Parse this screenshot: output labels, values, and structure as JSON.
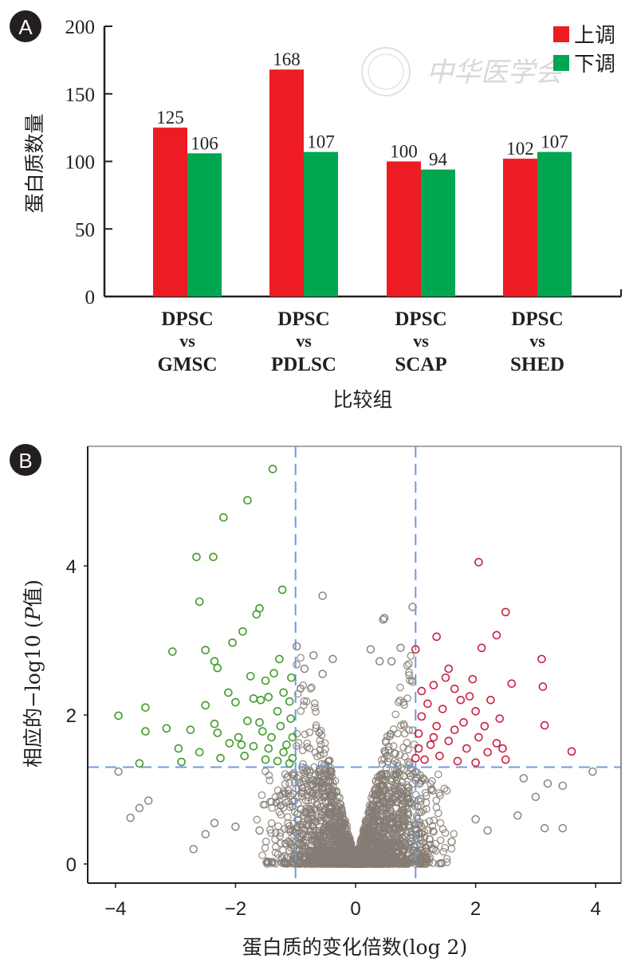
{
  "colors": {
    "up": "#ed1c24",
    "down": "#00a650",
    "scatter_up": "#c8203f",
    "scatter_down": "#3f9a2a",
    "scatter_ns": "#857c74",
    "threshold": "#6f9be0",
    "axis": "#231f20"
  },
  "watermark": "中华医学会",
  "chart_data": [
    {
      "panel": "A",
      "type": "bar",
      "title": "",
      "xlabel": "比较组",
      "ylabel": "蛋白质数量",
      "ylim": [
        0,
        200
      ],
      "yticks": [
        0,
        50,
        100,
        150,
        200
      ],
      "categories": [
        {
          "line1": "DPSC",
          "line2": "vs",
          "line3": "GMSC"
        },
        {
          "line1": "DPSC",
          "line2": "vs",
          "line3": "PDLSC"
        },
        {
          "line1": "DPSC",
          "line2": "vs",
          "line3": "SCAP"
        },
        {
          "line1": "DPSC",
          "line2": "vs",
          "line3": "SHED"
        }
      ],
      "series": [
        {
          "name": "上调",
          "color": "#ed1c24",
          "values": [
            125,
            168,
            100,
            102
          ]
        },
        {
          "name": "下调",
          "color": "#00a650",
          "values": [
            106,
            107,
            94,
            107
          ]
        }
      ],
      "legend": "top-right",
      "grid": false
    },
    {
      "panel": "B",
      "type": "scatter",
      "subtype": "volcano",
      "title": "",
      "xlabel": "蛋白质的变化倍数(log 2)",
      "ylabel_prefix": "相应的−log10 (",
      "ylabel_italic": "P",
      "ylabel_suffix": "值)",
      "xlim": [
        -4.4,
        4.4
      ],
      "ylim": [
        -0.25,
        5.6
      ],
      "xticks": [
        -4,
        -2,
        0,
        2,
        4
      ],
      "xtick_labels": [
        "−4",
        "−2",
        "0",
        "2",
        "4"
      ],
      "yticks": [
        0,
        2,
        4
      ],
      "thresholds": {
        "log2fc": [
          -1,
          1
        ],
        "neg_log10_p": 1.3
      },
      "grid": false,
      "series": [
        {
          "name": "down-regulated",
          "color": "#3f9a2a",
          "points": [
            [
              -1.38,
              5.3
            ],
            [
              -1.8,
              4.88
            ],
            [
              -2.2,
              4.65
            ],
            [
              -2.65,
              4.12
            ],
            [
              -2.37,
              4.12
            ],
            [
              -1.22,
              3.68
            ],
            [
              -2.6,
              3.52
            ],
            [
              -1.6,
              3.43
            ],
            [
              -1.65,
              3.35
            ],
            [
              -1.88,
              3.12
            ],
            [
              -3.05,
              2.85
            ],
            [
              -2.5,
              2.87
            ],
            [
              -1.27,
              2.75
            ],
            [
              -2.35,
              2.72
            ],
            [
              -2.3,
              2.63
            ],
            [
              -2.05,
              2.97
            ],
            [
              -1.75,
              2.52
            ],
            [
              -1.5,
              2.46
            ],
            [
              -1.36,
              2.56
            ],
            [
              -1.07,
              2.5
            ],
            [
              -2.12,
              2.3
            ],
            [
              -1.2,
              2.3
            ],
            [
              -1.7,
              2.22
            ],
            [
              -1.45,
              2.24
            ],
            [
              -3.95,
              1.99
            ],
            [
              -3.5,
              2.1
            ],
            [
              -2.5,
              2.13
            ],
            [
              -2.0,
              2.17
            ],
            [
              -1.58,
              2.2
            ],
            [
              -1.1,
              2.18
            ],
            [
              -3.15,
              1.82
            ],
            [
              -3.5,
              1.78
            ],
            [
              -2.75,
              1.8
            ],
            [
              -2.35,
              1.88
            ],
            [
              -1.8,
              1.92
            ],
            [
              -1.6,
              1.9
            ],
            [
              -1.25,
              1.85
            ],
            [
              -1.08,
              1.95
            ],
            [
              -2.95,
              1.55
            ],
            [
              -2.6,
              1.5
            ],
            [
              -2.1,
              1.62
            ],
            [
              -1.9,
              1.6
            ],
            [
              -1.7,
              1.58
            ],
            [
              -1.45,
              1.55
            ],
            [
              -1.15,
              1.6
            ],
            [
              -3.6,
              1.35
            ],
            [
              -2.9,
              1.37
            ],
            [
              -2.25,
              1.42
            ],
            [
              -1.85,
              1.45
            ],
            [
              -1.5,
              1.4
            ],
            [
              -1.3,
              1.38
            ],
            [
              -1.05,
              1.42
            ],
            [
              -1.2,
              1.5
            ],
            [
              -1.4,
              1.7
            ],
            [
              -1.05,
              1.7
            ],
            [
              -2.3,
              1.76
            ],
            [
              -1.95,
              1.7
            ],
            [
              -1.55,
              1.78
            ],
            [
              -1.3,
              2.05
            ],
            [
              -1.1,
              1.35
            ]
          ]
        },
        {
          "name": "up-regulated",
          "color": "#c8203f",
          "points": [
            [
              2.05,
              4.05
            ],
            [
              2.5,
              3.38
            ],
            [
              1.35,
              3.05
            ],
            [
              2.35,
              3.07
            ],
            [
              2.1,
              2.9
            ],
            [
              1.0,
              2.88
            ],
            [
              1.55,
              2.62
            ],
            [
              1.95,
              2.48
            ],
            [
              3.1,
              2.75
            ],
            [
              3.12,
              2.38
            ],
            [
              1.9,
              2.25
            ],
            [
              1.3,
              2.4
            ],
            [
              1.65,
              2.35
            ],
            [
              1.75,
              2.2
            ],
            [
              2.0,
              2.05
            ],
            [
              2.25,
              2.2
            ],
            [
              2.6,
              2.42
            ],
            [
              1.2,
              2.15
            ],
            [
              1.45,
              2.08
            ],
            [
              1.1,
              1.98
            ],
            [
              1.35,
              1.85
            ],
            [
              1.65,
              1.8
            ],
            [
              2.05,
              1.7
            ],
            [
              2.35,
              1.62
            ],
            [
              3.15,
              1.86
            ],
            [
              1.05,
              1.75
            ],
            [
              1.25,
              1.6
            ],
            [
              1.55,
              1.65
            ],
            [
              1.85,
              1.55
            ],
            [
              2.2,
              1.5
            ],
            [
              2.45,
              1.55
            ],
            [
              3.6,
              1.51
            ],
            [
              1.0,
              1.42
            ],
            [
              1.15,
              1.4
            ],
            [
              1.4,
              1.45
            ],
            [
              1.7,
              1.38
            ],
            [
              2.0,
              1.36
            ],
            [
              2.5,
              1.4
            ],
            [
              1.05,
              1.55
            ],
            [
              1.3,
              1.7
            ],
            [
              1.8,
              1.9
            ],
            [
              2.15,
              1.85
            ],
            [
              1.5,
              2.5
            ],
            [
              2.4,
              1.95
            ],
            [
              1.1,
              2.32
            ]
          ]
        }
      ],
      "ns_points_note": "dense grey cloud of non-significant proteins",
      "ns_sparse_points": [
        [
          -0.55,
          3.6
        ],
        [
          0.95,
          3.45
        ],
        [
          0.48,
          3.3
        ],
        [
          0.46,
          3.28
        ],
        [
          -0.98,
          2.92
        ],
        [
          -0.7,
          2.8
        ],
        [
          -0.38,
          2.75
        ],
        [
          0.75,
          2.9
        ],
        [
          0.25,
          2.88
        ],
        [
          0.6,
          2.72
        ],
        [
          0.4,
          2.72
        ],
        [
          -0.85,
          2.62
        ],
        [
          -0.55,
          2.55
        ],
        [
          -3.95,
          1.24
        ],
        [
          3.95,
          1.24
        ],
        [
          -3.75,
          0.62
        ],
        [
          -3.45,
          0.85
        ],
        [
          -3.6,
          0.75
        ],
        [
          -2.7,
          0.2
        ],
        [
          -2.5,
          0.4
        ],
        [
          3.15,
          0.48
        ],
        [
          3.45,
          0.48
        ],
        [
          2.8,
          1.15
        ],
        [
          3.2,
          1.08
        ],
        [
          3.45,
          1.05
        ],
        [
          2.7,
          0.65
        ],
        [
          3.0,
          0.9
        ],
        [
          -2.35,
          0.55
        ],
        [
          2.2,
          0.45
        ],
        [
          1.3,
          0.2
        ],
        [
          1.6,
          0.3
        ],
        [
          2.0,
          0.6
        ],
        [
          -2.0,
          0.5
        ],
        [
          -1.6,
          0.45
        ]
      ]
    }
  ],
  "panels": {
    "a_badge": "A",
    "b_badge": "B"
  }
}
